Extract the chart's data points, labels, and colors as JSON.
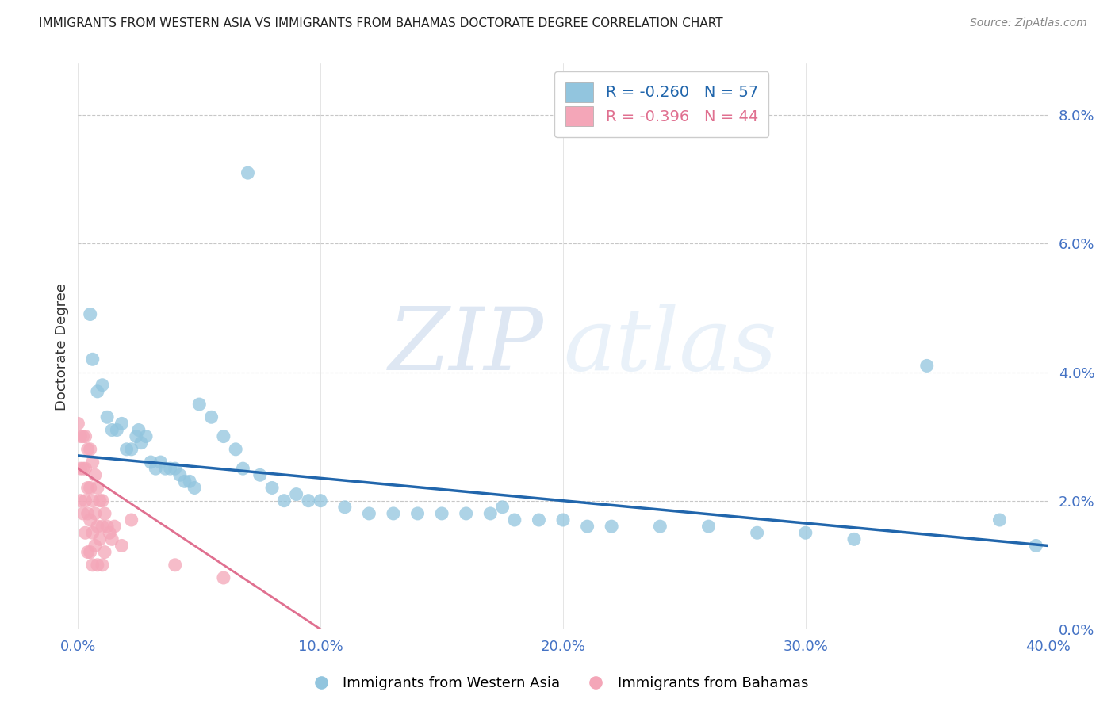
{
  "title": "IMMIGRANTS FROM WESTERN ASIA VS IMMIGRANTS FROM BAHAMAS DOCTORATE DEGREE CORRELATION CHART",
  "source": "Source: ZipAtlas.com",
  "ylabel": "Doctorate Degree",
  "watermark_zip": "ZIP",
  "watermark_atlas": "atlas",
  "xlim": [
    0.0,
    0.4
  ],
  "ylim": [
    0.0,
    0.088
  ],
  "xticks": [
    0.0,
    0.1,
    0.2,
    0.3,
    0.4
  ],
  "xtick_labels": [
    "0.0%",
    "10.0%",
    "20.0%",
    "30.0%",
    "40.0%"
  ],
  "yticks_right": [
    0.0,
    0.02,
    0.04,
    0.06,
    0.08
  ],
  "ytick_labels_right": [
    "0.0%",
    "2.0%",
    "4.0%",
    "6.0%",
    "8.0%"
  ],
  "legend_blue_label": "R = -0.260   N = 57",
  "legend_pink_label": "R = -0.396   N = 44",
  "blue_color": "#92c5de",
  "pink_color": "#f4a6b8",
  "line_blue_color": "#2166ac",
  "line_pink_color": "#e07090",
  "blue_scatter_x": [
    0.005,
    0.006,
    0.008,
    0.01,
    0.012,
    0.014,
    0.016,
    0.018,
    0.02,
    0.022,
    0.024,
    0.025,
    0.026,
    0.028,
    0.03,
    0.032,
    0.034,
    0.036,
    0.038,
    0.04,
    0.042,
    0.044,
    0.046,
    0.048,
    0.05,
    0.055,
    0.06,
    0.065,
    0.068,
    0.07,
    0.075,
    0.08,
    0.085,
    0.09,
    0.095,
    0.1,
    0.11,
    0.12,
    0.13,
    0.14,
    0.15,
    0.16,
    0.17,
    0.175,
    0.18,
    0.19,
    0.2,
    0.21,
    0.22,
    0.24,
    0.26,
    0.28,
    0.3,
    0.32,
    0.35,
    0.38,
    0.395
  ],
  "blue_scatter_y": [
    0.049,
    0.042,
    0.037,
    0.038,
    0.033,
    0.031,
    0.031,
    0.032,
    0.028,
    0.028,
    0.03,
    0.031,
    0.029,
    0.03,
    0.026,
    0.025,
    0.026,
    0.025,
    0.025,
    0.025,
    0.024,
    0.023,
    0.023,
    0.022,
    0.035,
    0.033,
    0.03,
    0.028,
    0.025,
    0.071,
    0.024,
    0.022,
    0.02,
    0.021,
    0.02,
    0.02,
    0.019,
    0.018,
    0.018,
    0.018,
    0.018,
    0.018,
    0.018,
    0.019,
    0.017,
    0.017,
    0.017,
    0.016,
    0.016,
    0.016,
    0.016,
    0.015,
    0.015,
    0.014,
    0.041,
    0.017,
    0.013
  ],
  "pink_scatter_x": [
    0.0,
    0.001,
    0.001,
    0.001,
    0.002,
    0.002,
    0.002,
    0.003,
    0.003,
    0.003,
    0.003,
    0.004,
    0.004,
    0.004,
    0.004,
    0.005,
    0.005,
    0.005,
    0.005,
    0.006,
    0.006,
    0.006,
    0.006,
    0.007,
    0.007,
    0.007,
    0.008,
    0.008,
    0.008,
    0.009,
    0.009,
    0.01,
    0.01,
    0.01,
    0.011,
    0.011,
    0.012,
    0.013,
    0.014,
    0.015,
    0.018,
    0.022,
    0.04,
    0.06
  ],
  "pink_scatter_y": [
    0.032,
    0.03,
    0.025,
    0.02,
    0.03,
    0.025,
    0.018,
    0.03,
    0.025,
    0.02,
    0.015,
    0.028,
    0.022,
    0.018,
    0.012,
    0.028,
    0.022,
    0.017,
    0.012,
    0.026,
    0.02,
    0.015,
    0.01,
    0.024,
    0.018,
    0.013,
    0.022,
    0.016,
    0.01,
    0.02,
    0.014,
    0.02,
    0.016,
    0.01,
    0.018,
    0.012,
    0.016,
    0.015,
    0.014,
    0.016,
    0.013,
    0.017,
    0.01,
    0.008
  ],
  "blue_line_x": [
    0.0,
    0.4
  ],
  "blue_line_y": [
    0.027,
    0.013
  ],
  "pink_line_x": [
    0.0,
    0.1
  ],
  "pink_line_y": [
    0.025,
    0.0
  ],
  "background_color": "#ffffff",
  "grid_color": "#b0b0b0",
  "title_color": "#222222",
  "axis_label_color": "#333333",
  "tick_color": "#4472c4"
}
